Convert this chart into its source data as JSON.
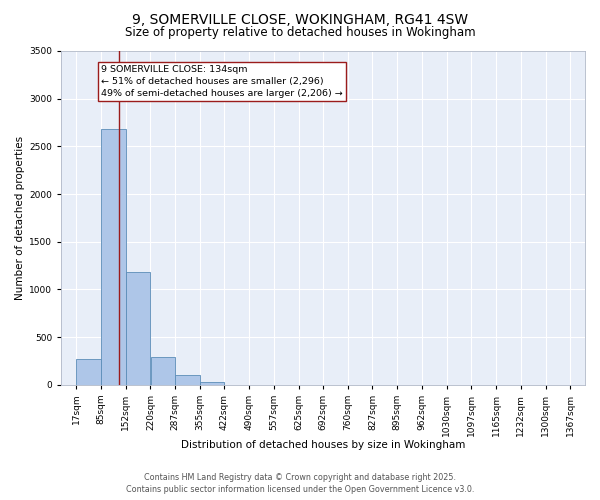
{
  "title": "9, SOMERVILLE CLOSE, WOKINGHAM, RG41 4SW",
  "subtitle": "Size of property relative to detached houses in Wokingham",
  "xlabel": "Distribution of detached houses by size in Wokingham",
  "ylabel": "Number of detached properties",
  "bin_labels": [
    "17sqm",
    "85sqm",
    "152sqm",
    "220sqm",
    "287sqm",
    "355sqm",
    "422sqm",
    "490sqm",
    "557sqm",
    "625sqm",
    "692sqm",
    "760sqm",
    "827sqm",
    "895sqm",
    "962sqm",
    "1030sqm",
    "1097sqm",
    "1165sqm",
    "1232sqm",
    "1300sqm",
    "1367sqm"
  ],
  "bin_edges": [
    17,
    85,
    152,
    220,
    287,
    355,
    422,
    490,
    557,
    625,
    692,
    760,
    827,
    895,
    962,
    1030,
    1097,
    1165,
    1232,
    1300,
    1367
  ],
  "bar_heights": [
    270,
    2680,
    1180,
    295,
    100,
    30,
    0,
    0,
    0,
    0,
    0,
    0,
    0,
    0,
    0,
    0,
    0,
    0,
    0,
    0
  ],
  "bar_color": "#aec6e8",
  "bar_edge_color": "#5b8db8",
  "vline_x": 134,
  "vline_color": "#9b1c1c",
  "annotation_text": "9 SOMERVILLE CLOSE: 134sqm\n← 51% of detached houses are smaller (2,296)\n49% of semi-detached houses are larger (2,206) →",
  "annotation_box_color": "white",
  "annotation_box_edge_color": "#9b1c1c",
  "ylim": [
    0,
    3500
  ],
  "yticks": [
    0,
    500,
    1000,
    1500,
    2000,
    2500,
    3000,
    3500
  ],
  "background_color": "#e8eef8",
  "grid_color": "white",
  "footer_line1": "Contains HM Land Registry data © Crown copyright and database right 2025.",
  "footer_line2": "Contains public sector information licensed under the Open Government Licence v3.0.",
  "title_fontsize": 10,
  "subtitle_fontsize": 8.5,
  "axis_label_fontsize": 7.5,
  "tick_fontsize": 6.5,
  "annotation_fontsize": 6.8,
  "footer_fontsize": 5.8
}
